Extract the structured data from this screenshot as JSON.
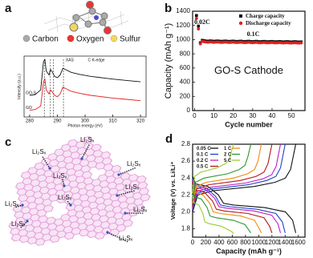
{
  "figure": {
    "panel_labels": [
      "a",
      "b",
      "c",
      "d"
    ],
    "molecule_legend": [
      "Carbon",
      "Oxygen",
      "Sulfur"
    ],
    "sheet_labels": [
      "Li₂Sₓ",
      "Li₂Sₓ",
      "Li₂Sₓ",
      "Li₂Sₓ",
      "Li₂Sₓ",
      "Li₂Sₓ",
      "Li₂Sₓ",
      "Li₂Sₓ",
      "Li₂Sₓ",
      "Li₂Sₓ"
    ]
  },
  "chart_data": [
    {
      "type": "line",
      "xlabel": "Photon energy (eV)",
      "ylabel": "Intensity (a.u.)",
      "annotations": [
        "XAS",
        "C K-edge"
      ],
      "x": [
        280,
        282,
        284,
        285,
        285.5,
        286,
        287,
        287.5,
        288,
        289,
        290,
        291,
        292,
        293,
        295,
        298,
        302,
        306,
        310,
        315,
        320
      ],
      "series": [
        {
          "name": "GO-S",
          "color": "#111111",
          "values": [
            0.42,
            0.43,
            0.5,
            0.92,
            0.95,
            0.78,
            0.72,
            0.8,
            0.78,
            0.7,
            0.68,
            0.72,
            0.82,
            0.8,
            0.76,
            0.73,
            0.7,
            0.68,
            0.66,
            0.64,
            0.62
          ]
        },
        {
          "name": "GO",
          "color": "#e02020",
          "values": [
            0.2,
            0.21,
            0.26,
            0.62,
            0.66,
            0.5,
            0.44,
            0.5,
            0.48,
            0.42,
            0.4,
            0.44,
            0.54,
            0.52,
            0.48,
            0.45,
            0.42,
            0.4,
            0.38,
            0.36,
            0.34
          ]
        }
      ],
      "vlines": [
        285.3,
        287.5,
        288.6,
        292.2
      ],
      "xlim": [
        278,
        322
      ],
      "xticks": [
        280,
        290,
        300,
        310,
        320
      ],
      "ylim": [
        0.1,
        1.0
      ]
    },
    {
      "type": "scatter",
      "xlabel": "Cycle number",
      "ylabel": "Capacity  (mAh g⁻¹)",
      "annotations": [
        "0.02C",
        "0.1C",
        "GO-S Cathode"
      ],
      "legend": "top-right",
      "x": [
        1,
        2,
        3,
        4,
        5,
        6,
        7,
        8,
        9,
        10,
        11,
        12,
        13,
        14,
        15,
        16,
        17,
        18,
        19,
        20,
        21,
        22,
        23,
        24,
        25,
        26,
        27,
        28,
        29,
        30,
        31,
        32,
        33,
        34,
        35,
        36,
        37,
        38,
        39,
        40,
        41,
        42,
        43,
        44,
        45,
        46,
        47,
        48,
        49,
        50,
        51,
        52,
        53,
        54,
        55
      ],
      "series": [
        {
          "name": "Charge capacity",
          "color": "#111111",
          "marker": "square",
          "values": [
            1340,
            1190,
            955,
            990,
            985,
            980,
            978,
            982,
            980,
            976,
            979,
            981,
            977,
            975,
            978,
            980,
            976,
            974,
            977,
            979,
            975,
            973,
            976,
            978,
            974,
            972,
            975,
            977,
            973,
            971,
            974,
            976,
            972,
            970,
            973,
            975,
            971,
            970,
            972,
            974,
            970,
            969,
            971,
            973,
            969,
            968,
            970,
            972,
            968,
            967,
            969,
            971,
            967,
            966,
            968
          ]
        },
        {
          "name": "Discharge capacity",
          "color": "#e02020",
          "marker": "circle",
          "values": [
            1300,
            1150,
            940,
            975,
            970,
            965,
            963,
            967,
            965,
            961,
            964,
            966,
            962,
            960,
            963,
            965,
            961,
            959,
            962,
            964,
            960,
            958,
            961,
            963,
            959,
            957,
            960,
            962,
            958,
            956,
            959,
            961,
            957,
            955,
            958,
            960,
            956,
            955,
            957,
            959,
            955,
            954,
            956,
            958,
            954,
            953,
            955,
            957,
            953,
            952,
            954,
            956,
            952,
            951,
            953
          ]
        }
      ],
      "xlim": [
        -1,
        57
      ],
      "xticks": [
        0,
        10,
        20,
        30,
        40,
        50
      ],
      "ylim": [
        0,
        1400
      ],
      "yticks": [
        0,
        200,
        400,
        600,
        800,
        1000,
        1200,
        1400
      ]
    },
    {
      "type": "line",
      "xlabel": "Capacity (mAh g⁻¹)",
      "ylabel": "Voltage (V) vs. Li/Li⁺",
      "legend": "top-left",
      "series": [
        {
          "name": "0.05 C",
          "color": "#111111",
          "x": [
            0,
            47,
            234,
            390,
            468,
            624,
            1092,
            1404,
            1513,
            1560,
            null,
            0,
            78,
            312,
            936,
            1248,
            1404,
            1482,
            1560
          ],
          "values": [
            2.42,
            2.33,
            2.3,
            2.2,
            2.1,
            2.08,
            2.05,
            2.0,
            1.9,
            1.75,
            null,
            2.0,
            2.2,
            2.25,
            2.3,
            2.35,
            2.4,
            2.5,
            2.8
          ]
        },
        {
          "name": "0.1 C",
          "color": "#1f3fd0",
          "x": [
            0,
            42,
            210,
            350,
            420,
            560,
            980,
            1260,
            1358,
            1400,
            null,
            0,
            70,
            280,
            840,
            1120,
            1260,
            1330,
            1400
          ],
          "values": [
            2.4,
            2.31,
            2.28,
            2.18,
            2.08,
            2.06,
            2.03,
            1.98,
            1.88,
            1.75,
            null,
            2.02,
            2.22,
            2.27,
            2.32,
            2.37,
            2.42,
            2.52,
            2.8
          ]
        },
        {
          "name": "0.2 C",
          "color": "#c020c0",
          "x": [
            0,
            40,
            200,
            333,
            399,
            532,
            931,
            1197,
            1290,
            1330,
            null,
            0,
            67,
            266,
            798,
            1064,
            1197,
            1264,
            1330
          ],
          "values": [
            2.38,
            2.29,
            2.26,
            2.16,
            2.06,
            2.04,
            2.01,
            1.96,
            1.86,
            1.75,
            null,
            2.04,
            2.24,
            2.29,
            2.34,
            2.39,
            2.44,
            2.54,
            2.8
          ]
        },
        {
          "name": "0.5 C",
          "color": "#b01818",
          "x": [
            0,
            36,
            180,
            300,
            360,
            480,
            840,
            1080,
            1164,
            1200,
            null,
            0,
            60,
            240,
            720,
            960,
            1080,
            1140,
            1200
          ],
          "values": [
            2.35,
            2.26,
            2.23,
            2.13,
            2.03,
            2.01,
            1.98,
            1.93,
            1.83,
            1.75,
            null,
            2.07,
            2.27,
            2.32,
            2.37,
            2.42,
            2.47,
            2.57,
            2.8
          ]
        },
        {
          "name": "1 C",
          "color": "#f08a10",
          "x": [
            0,
            31,
            156,
            260,
            312,
            416,
            728,
            936,
            1009,
            1040,
            null,
            0,
            52,
            208,
            624,
            832,
            936,
            988,
            1040
          ],
          "values": [
            2.32,
            2.23,
            2.2,
            2.1,
            2.0,
            1.98,
            1.95,
            1.9,
            1.8,
            1.75,
            null,
            2.1,
            2.3,
            2.35,
            2.4,
            2.45,
            2.5,
            2.6,
            2.8
          ]
        },
        {
          "name": "2 C",
          "color": "#2a9a2a",
          "x": [
            0,
            26,
            132,
            220,
            264,
            352,
            616,
            792,
            854,
            880,
            null,
            0,
            44,
            176,
            528,
            704,
            792,
            836,
            880
          ],
          "values": [
            2.27,
            2.18,
            2.15,
            2.05,
            1.95,
            1.93,
            1.9,
            1.85,
            1.78,
            1.75,
            null,
            2.15,
            2.35,
            2.4,
            2.45,
            2.5,
            2.55,
            2.65,
            2.8
          ]
        },
        {
          "name": "5 C",
          "color": "#9acd32",
          "x": [
            0,
            19,
            93,
            155,
            186,
            248,
            434,
            558,
            601,
            620,
            null,
            0,
            31,
            124,
            372,
            496,
            558,
            589,
            620
          ],
          "values": [
            2.2,
            2.11,
            2.08,
            1.98,
            1.88,
            1.86,
            1.83,
            1.78,
            1.76,
            1.74,
            null,
            2.22,
            2.42,
            2.47,
            2.52,
            2.57,
            2.62,
            2.72,
            2.8
          ]
        }
      ],
      "xlim": [
        0,
        1700
      ],
      "xticks": [
        0,
        200,
        400,
        600,
        800,
        1000,
        1200,
        1400,
        1600
      ],
      "ylim": [
        1.7,
        2.8
      ],
      "yticks": [
        1.8,
        {
          "value": 2,
          "label": "2.0"
        },
        2.2,
        2.4,
        2.6,
        2.8
      ]
    }
  ]
}
